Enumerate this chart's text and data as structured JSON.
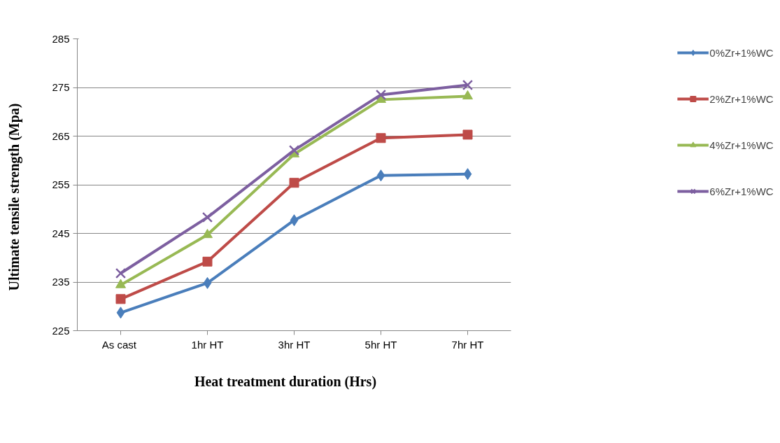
{
  "chart_data": {
    "type": "line",
    "xlabel": "Heat   treatment duration    (Hrs)",
    "ylabel": "Ultimate tensile     strength    (Mpa)",
    "categories": [
      "As  cast",
      "1hr HT",
      "3hr HT",
      "5hr HT",
      "7hr HT"
    ],
    "ylim": [
      225,
      285
    ],
    "yticks": [
      225,
      235,
      245,
      255,
      265,
      275,
      285
    ],
    "grid": "y",
    "legend": "right",
    "series": [
      {
        "name": "0%Zr+1%WC",
        "color": "#4a7ebb",
        "marker": "diamond",
        "values": [
          228.7,
          234.8,
          247.7,
          256.9,
          257.2
        ]
      },
      {
        "name": "2%Zr+1%WC",
        "color": "#be4b48",
        "marker": "square",
        "values": [
          231.5,
          239.2,
          255.4,
          264.6,
          265.3
        ]
      },
      {
        "name": "4%Zr+1%WC",
        "color": "#98b954",
        "marker": "triangle",
        "values": [
          234.4,
          244.7,
          261.3,
          272.5,
          273.2
        ]
      },
      {
        "name": "6%Zr+1%WC",
        "color": "#7d5fa0",
        "marker": "cross",
        "values": [
          236.8,
          248.3,
          262.1,
          273.5,
          275.5
        ]
      }
    ]
  }
}
